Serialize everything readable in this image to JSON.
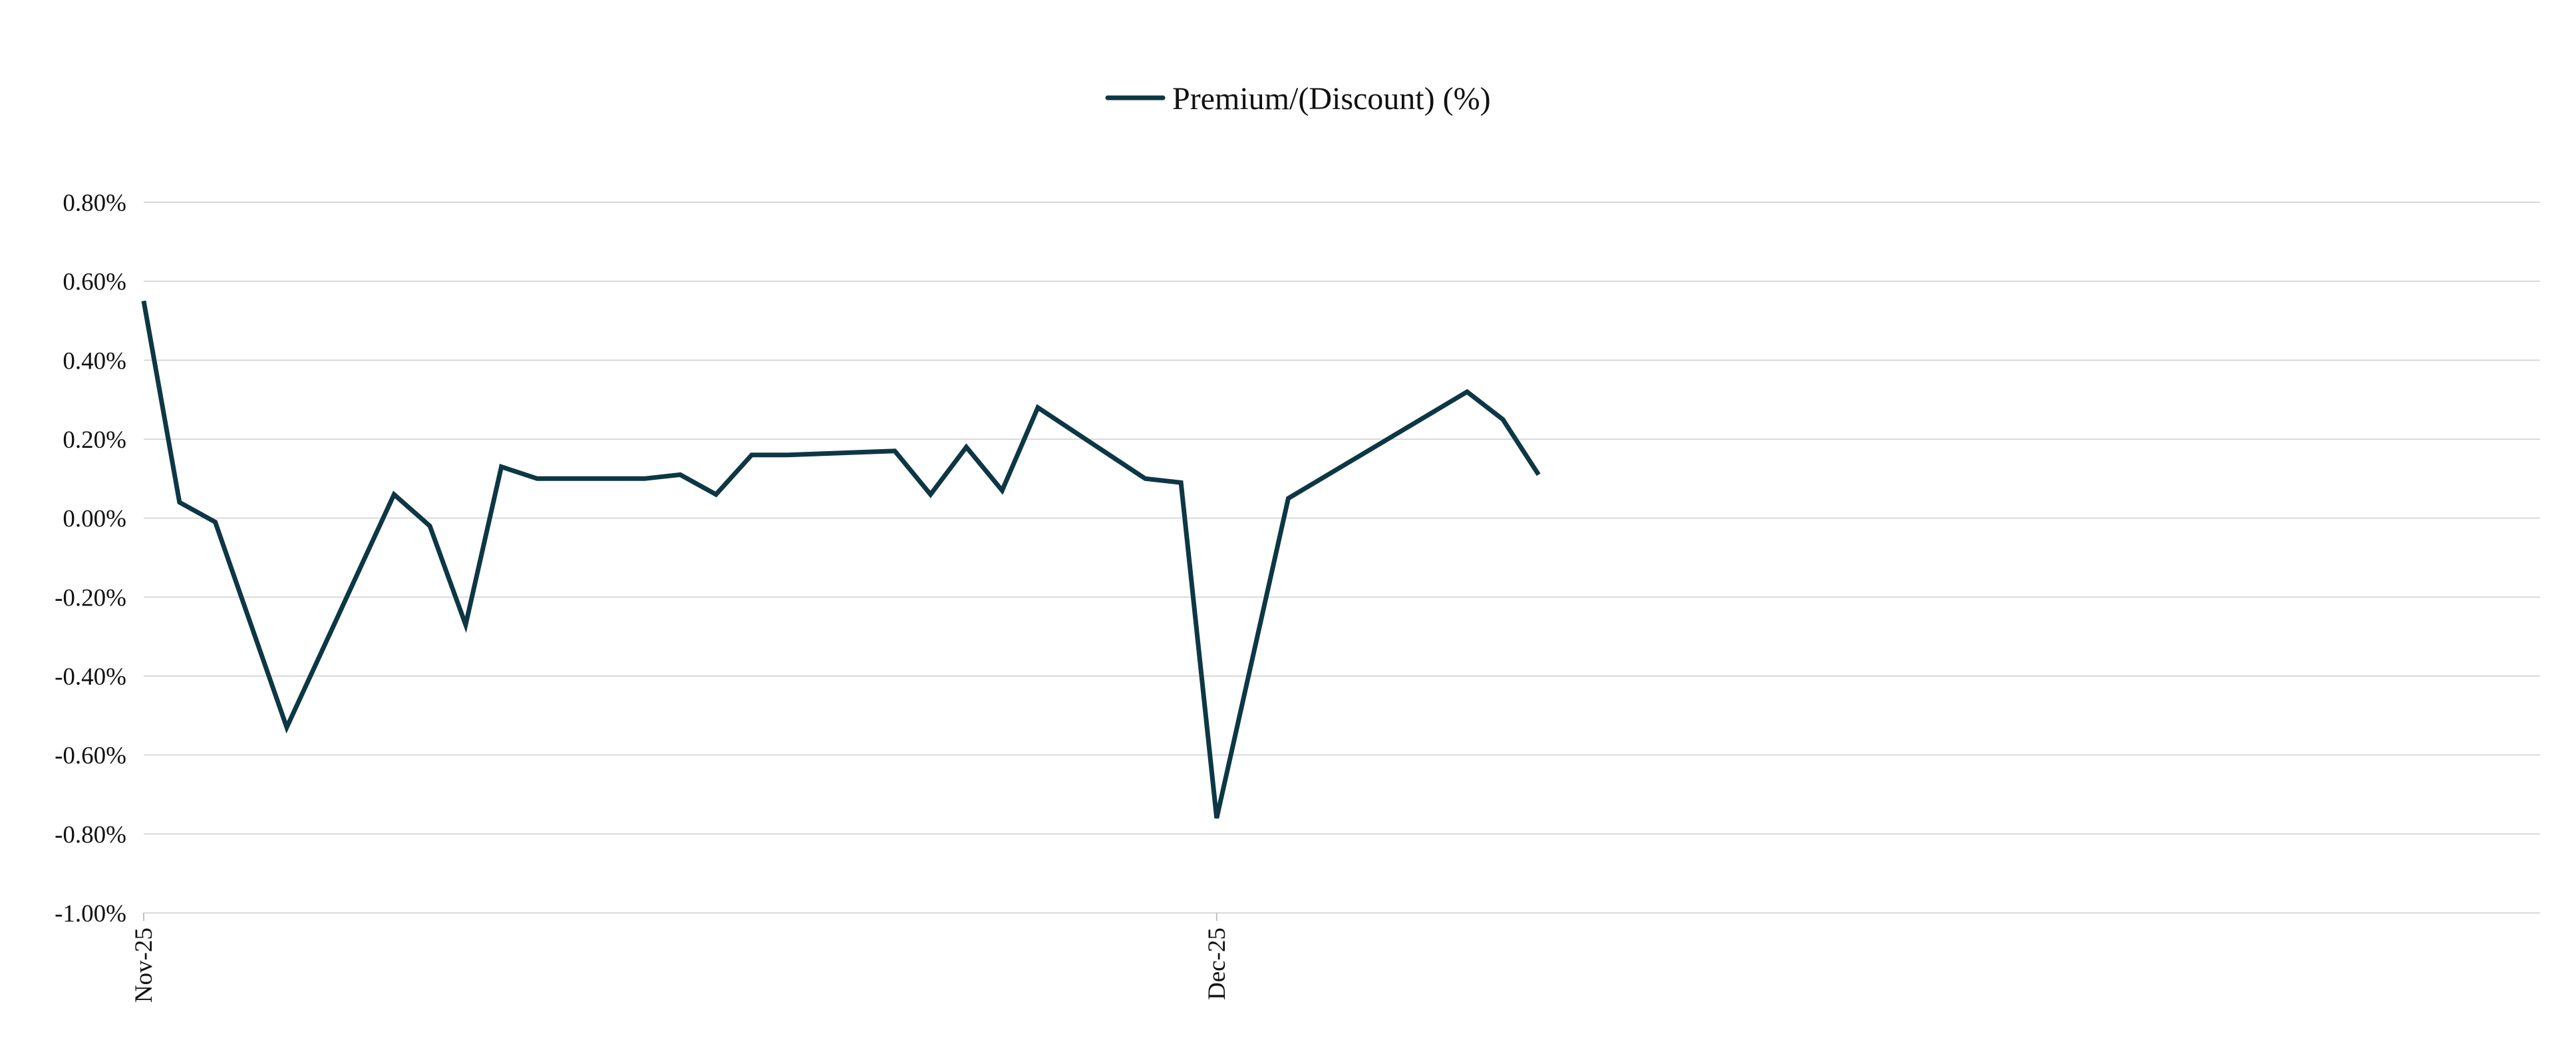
{
  "chart_data": {
    "type": "line",
    "title": "",
    "xlabel": "",
    "ylabel": "",
    "legend": {
      "position": "top-center"
    },
    "grid": {
      "y": true,
      "x": false
    },
    "x_ticks": [
      {
        "date": "2025-11-01",
        "label": "Nov-25"
      },
      {
        "date": "2025-12-01",
        "label": "Dec-25"
      }
    ],
    "x_range": [
      "2025-11-01",
      "2026-01-07"
    ],
    "y_ticks": [
      {
        "value": 0.8,
        "label": "0.80%"
      },
      {
        "value": 0.6,
        "label": "0.60%"
      },
      {
        "value": 0.4,
        "label": "0.40%"
      },
      {
        "value": 0.2,
        "label": "0.20%"
      },
      {
        "value": 0.0,
        "label": "0.00%"
      },
      {
        "value": -0.2,
        "label": "-0.20%"
      },
      {
        "value": -0.4,
        "label": "-0.40%"
      },
      {
        "value": -0.6,
        "label": "-0.60%"
      },
      {
        "value": -0.8,
        "label": "-0.80%"
      },
      {
        "value": -1.0,
        "label": "-1.00%"
      }
    ],
    "ylim": [
      -1.0,
      0.8
    ],
    "series": [
      {
        "name": "Premium/(Discount) (%)",
        "color": "#0d3745",
        "x": [
          "2025-11-01",
          "2025-11-02",
          "2025-11-03",
          "2025-11-05",
          "2025-11-08",
          "2025-11-09",
          "2025-11-10",
          "2025-11-11",
          "2025-11-12",
          "2025-11-15",
          "2025-11-16",
          "2025-11-17",
          "2025-11-18",
          "2025-11-19",
          "2025-11-22",
          "2025-11-23",
          "2025-11-24",
          "2025-11-25",
          "2025-11-26",
          "2025-11-29",
          "2025-11-30",
          "2025-12-01",
          "2025-12-03",
          "2025-12-08",
          "2025-12-09",
          "2025-12-10"
        ],
        "y": [
          0.55,
          0.04,
          -0.01,
          -0.53,
          0.06,
          -0.02,
          -0.27,
          0.13,
          0.1,
          0.1,
          0.11,
          0.06,
          0.16,
          0.16,
          0.17,
          0.06,
          0.18,
          0.07,
          0.28,
          0.1,
          0.09,
          -0.76,
          0.05,
          0.32,
          0.25,
          0.11
        ]
      }
    ]
  }
}
